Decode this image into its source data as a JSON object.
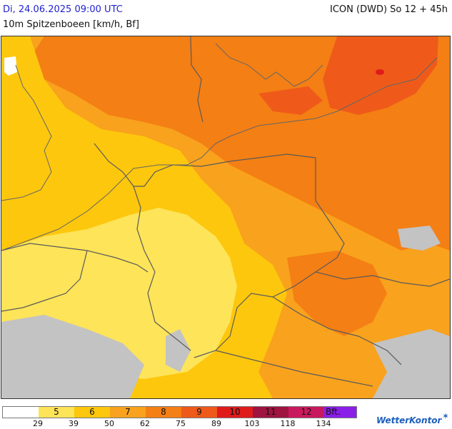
{
  "header": {
    "date": "Di, 24.06.2025 09:00 UTC",
    "model": "ICON (DWD) So 12 + 45h",
    "parameter": "10m Spitzenboeen [km/h, Bf]"
  },
  "legend": {
    "segments": [
      {
        "label": "",
        "color": "#ffffff"
      },
      {
        "label": "5",
        "color": "#fde459"
      },
      {
        "label": "6",
        "color": "#fdc70d"
      },
      {
        "label": "7",
        "color": "#f9a21d"
      },
      {
        "label": "8",
        "color": "#f47f14"
      },
      {
        "label": "9",
        "color": "#ef5a1a"
      },
      {
        "label": "10",
        "color": "#e01b1b"
      },
      {
        "label": "11",
        "color": "#9e1340"
      },
      {
        "label": "12",
        "color": "#c9195e"
      },
      {
        "label": "Bft.",
        "color": "#8a1fe8"
      }
    ],
    "thresholds": [
      "29",
      "39",
      "50",
      "62",
      "75",
      "89",
      "103",
      "118",
      "134"
    ]
  },
  "brand": {
    "name": "WetterKontor",
    "icon": "wind-turbine-icon"
  },
  "map": {
    "outside_domain_color": "#c3c3c3",
    "border_color": "#5a5a5a"
  }
}
